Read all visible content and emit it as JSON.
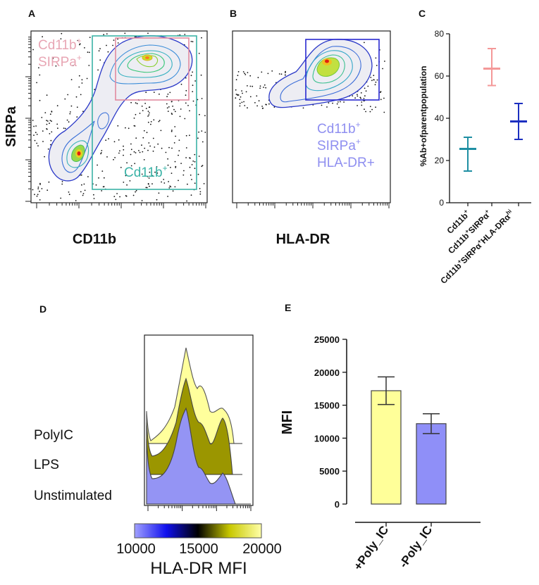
{
  "panels": {
    "a": {
      "label": "A",
      "xlabel": "CD11b",
      "ylabel": "SIRPa",
      "gate_outer": {
        "line1": "Cd11b",
        "sup1": "+",
        "line2": "SIRPa",
        "sup2": "+",
        "color": "#e8a6b4"
      },
      "gate_inner": {
        "text": "Cd11b",
        "sup": "+",
        "color": "#3bb3a7"
      }
    },
    "b": {
      "label": "B",
      "xlabel": "HLA-DR",
      "gate": {
        "line1": "Cd11b",
        "sup1": "+",
        "line2": "SIRPa",
        "sup2": "+",
        "line3": "HLA-DR+",
        "color": "#8f8ff0"
      }
    },
    "c": {
      "label": "C"
    },
    "d": {
      "label": "D",
      "rows": [
        "PolyIC",
        "LPS",
        "Unstimulated"
      ],
      "colorbar": {
        "min": "10000",
        "mid": "15000",
        "max": "20000",
        "title": "HLA-DR MFI"
      }
    },
    "e": {
      "label": "E"
    }
  },
  "chart_data": [
    {
      "id": "c",
      "type": "scatter",
      "title": "",
      "ylabel": "%Ab+ofparentpopulation",
      "ylim": [
        0,
        80
      ],
      "yticks": [
        0,
        20,
        40,
        60,
        80
      ],
      "categories": [
        {
          "main": "Cd11b",
          "sup": "+"
        },
        {
          "main": "Cd11b",
          "sup": "+",
          "tail": "SIRPα",
          "tailsup": "+"
        },
        {
          "main": "Cd11b",
          "sup": "+",
          "tail": "SIRPα",
          "tailsup": "+",
          "tail2": "HLA-DRα",
          "tail2sup": "hi"
        }
      ],
      "series": [
        {
          "name": "Cd11b+",
          "mean": 25.5,
          "low": 15,
          "high": 31,
          "color": "#1f8fa3"
        },
        {
          "name": "Cd11b+SIRPα+",
          "mean": 63.5,
          "low": 55.5,
          "high": 73,
          "color": "#f49898"
        },
        {
          "name": "Cd11b+SIRPα+HLA-DRαhi",
          "mean": 38.5,
          "low": 30,
          "high": 47,
          "color": "#1c2fc0"
        }
      ]
    },
    {
      "id": "e",
      "type": "bar",
      "title": "",
      "ylabel": "MFI",
      "ylim": [
        0,
        25000
      ],
      "yticks": [
        0,
        5000,
        10000,
        15000,
        20000,
        25000
      ],
      "categories": [
        "+Poly_IC",
        "-Poly_IC"
      ],
      "values": [
        17200,
        12200
      ],
      "errors": [
        2100,
        1500
      ],
      "colors": [
        "#ffff99",
        "#8f8ff8"
      ]
    }
  ]
}
